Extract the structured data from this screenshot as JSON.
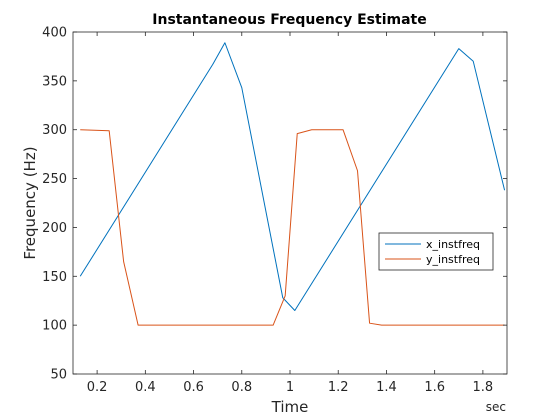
{
  "chart_data": {
    "type": "line",
    "title": "Instantaneous Frequency Estimate",
    "xlabel": "Time",
    "xunit": "sec",
    "ylabel": "Frequency (Hz)",
    "xlim": [
      0.1,
      1.9
    ],
    "ylim": [
      50,
      400
    ],
    "xticks": [
      0.2,
      0.4,
      0.6,
      0.8,
      1,
      1.2,
      1.4,
      1.6,
      1.8
    ],
    "xtick_labels": [
      "0.2",
      "0.4",
      "0.6",
      "0.8",
      "1",
      "1.2",
      "1.4",
      "1.6",
      "1.8"
    ],
    "yticks": [
      50,
      100,
      150,
      200,
      250,
      300,
      350,
      400
    ],
    "ytick_labels": [
      "50",
      "100",
      "150",
      "200",
      "250",
      "300",
      "350",
      "400"
    ],
    "grid": false,
    "box": true,
    "legend_position": "right",
    "series": [
      {
        "name": "x_instfreq",
        "color": "#0072BD",
        "points": [
          [
            0.13,
            150
          ],
          [
            0.68,
            367
          ],
          [
            0.73,
            389
          ],
          [
            0.8,
            343
          ],
          [
            0.97,
            128
          ],
          [
            1.02,
            115
          ],
          [
            1.7,
            383
          ],
          [
            1.76,
            370
          ],
          [
            1.89,
            238
          ]
        ]
      },
      {
        "name": "y_instfreq",
        "color": "#D95319",
        "points": [
          [
            0.13,
            300
          ],
          [
            0.25,
            299
          ],
          [
            0.31,
            165
          ],
          [
            0.37,
            100
          ],
          [
            0.93,
            100
          ],
          [
            0.98,
            130
          ],
          [
            1.03,
            296
          ],
          [
            1.09,
            300
          ],
          [
            1.22,
            300
          ],
          [
            1.28,
            258
          ],
          [
            1.33,
            102
          ],
          [
            1.38,
            100
          ],
          [
            1.89,
            100
          ]
        ]
      }
    ]
  }
}
